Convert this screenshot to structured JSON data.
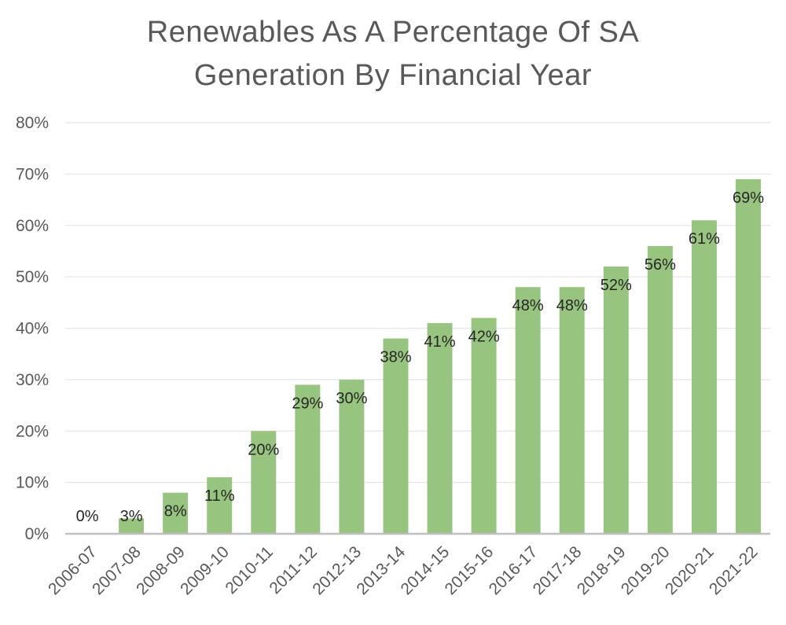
{
  "chart_data": {
    "type": "bar",
    "title_lines": [
      "Renewables As A Percentage Of SA",
      "Generation By Financial Year"
    ],
    "categories": [
      "2006-07",
      "2007-08",
      "2008-09",
      "2009-10",
      "2010-11",
      "2011-12",
      "2012-13",
      "2013-14",
      "2014-15",
      "2015-16",
      "2016-17",
      "2017-18",
      "2018-19",
      "2019-20",
      "2020-21",
      "2021-22"
    ],
    "values": [
      0,
      3,
      8,
      11,
      20,
      29,
      30,
      38,
      41,
      42,
      48,
      48,
      52,
      56,
      61,
      69
    ],
    "data_labels": [
      "0%",
      "3%",
      "8%",
      "11%",
      "20%",
      "29%",
      "30%",
      "38%",
      "41%",
      "42%",
      "48%",
      "48%",
      "52%",
      "56%",
      "61%",
      "69%"
    ],
    "yticks": [
      "0%",
      "10%",
      "20%",
      "30%",
      "40%",
      "50%",
      "60%",
      "70%",
      "80%"
    ],
    "ylim": [
      0,
      80
    ],
    "y_unit": "percent",
    "grid": true,
    "legend": "none",
    "colors": {
      "bar": "#97c47e",
      "grid": "#e6e6e6",
      "axis": "#bfbfbf",
      "text": "#595959"
    }
  }
}
